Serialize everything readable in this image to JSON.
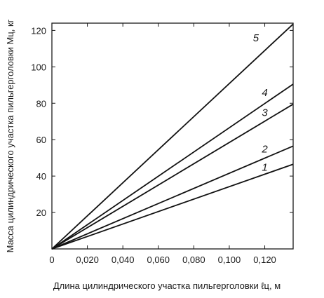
{
  "chart_data": {
    "type": "line",
    "xlabel": "Длина цилиндрического участка пильгерголовки ℓц, м",
    "ylabel": "Масса цилиндрического участка пильгерголовки Mц, кг",
    "xlim": [
      0,
      0.136
    ],
    "ylim": [
      0,
      124
    ],
    "x_ticks": [
      0,
      0.02,
      0.04,
      0.06,
      0.08,
      0.1,
      0.12
    ],
    "x_tick_labels": [
      "0",
      "0,020",
      "0,040",
      "0,060",
      "0,080",
      "0,100",
      "0,120"
    ],
    "y_ticks": [
      20,
      40,
      60,
      80,
      100,
      120
    ],
    "y_tick_labels": [
      "20",
      "40",
      "60",
      "80",
      "100",
      "120"
    ],
    "grid": false,
    "series": [
      {
        "name": "1",
        "x": [
          0,
          0.136
        ],
        "y": [
          0,
          46.5
        ]
      },
      {
        "name": "2",
        "x": [
          0,
          0.136
        ],
        "y": [
          0,
          56.5
        ]
      },
      {
        "name": "3",
        "x": [
          0,
          0.136
        ],
        "y": [
          0,
          79.5
        ]
      },
      {
        "name": "4",
        "x": [
          0,
          0.136
        ],
        "y": [
          0,
          90.5
        ]
      },
      {
        "name": "5",
        "x": [
          0,
          0.136
        ],
        "y": [
          0,
          123.5
        ]
      }
    ],
    "series_label_positions": [
      {
        "name": "1",
        "x": 0.12,
        "y": 43
      },
      {
        "name": "2",
        "x": 0.12,
        "y": 53
      },
      {
        "name": "3",
        "x": 0.12,
        "y": 73
      },
      {
        "name": "4",
        "x": 0.12,
        "y": 84
      },
      {
        "name": "5",
        "x": 0.115,
        "y": 114
      }
    ]
  }
}
